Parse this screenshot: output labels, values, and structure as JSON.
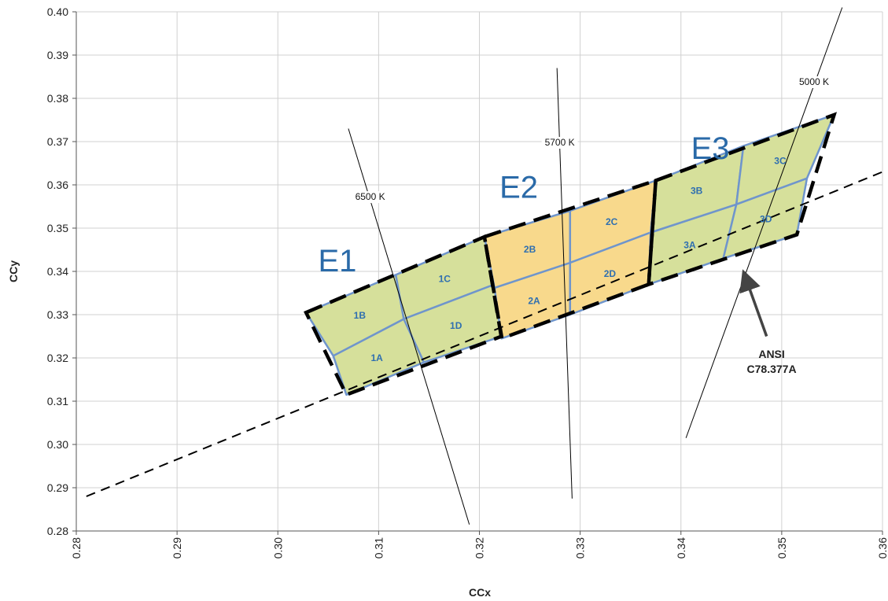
{
  "chart_data": {
    "type": "scatter",
    "xlabel": "CCx",
    "ylabel": "CCy",
    "xlim": [
      0.28,
      0.36
    ],
    "ylim": [
      0.28,
      0.4
    ],
    "x_ticks": [
      "0.28",
      "0.29",
      "0.30",
      "0.31",
      "0.32",
      "0.33",
      "0.34",
      "0.35",
      "0.36"
    ],
    "y_ticks": [
      "0.28",
      "0.29",
      "0.30",
      "0.31",
      "0.32",
      "0.33",
      "0.34",
      "0.35",
      "0.36",
      "0.37",
      "0.38",
      "0.39",
      "0.40"
    ],
    "grid": true,
    "colors": {
      "green_fill": "#d6e09b",
      "orange_fill": "#f8d98c",
      "bin_border": "#6f95cc",
      "label_blue": "#2a6aa8"
    },
    "planckian_locus": {
      "style": "dashed",
      "points": [
        [
          0.281,
          0.288
        ],
        [
          0.36,
          0.363
        ]
      ]
    },
    "cct_lines": [
      {
        "label": "6500 K",
        "points": [
          [
            0.307,
            0.373
          ],
          [
            0.319,
            0.2815
          ]
        ]
      },
      {
        "label": "5700 K",
        "points": [
          [
            0.3277,
            0.387
          ],
          [
            0.3292,
            0.2875
          ]
        ]
      },
      {
        "label": "5000 K",
        "points": [
          [
            0.356,
            0.401
          ],
          [
            0.3405,
            0.3015
          ]
        ]
      }
    ],
    "bins": [
      {
        "label": "1A",
        "group": "E1",
        "fill": "green",
        "points": [
          [
            0.3055,
            0.3205
          ],
          [
            0.3125,
            0.329
          ],
          [
            0.3145,
            0.319
          ],
          [
            0.3068,
            0.3115
          ]
        ]
      },
      {
        "label": "1B",
        "group": "E1",
        "fill": "green",
        "points": [
          [
            0.3028,
            0.3305
          ],
          [
            0.3117,
            0.3392
          ],
          [
            0.3125,
            0.329
          ],
          [
            0.3055,
            0.3205
          ]
        ]
      },
      {
        "label": "1C",
        "group": "E1",
        "fill": "green",
        "points": [
          [
            0.3117,
            0.3392
          ],
          [
            0.3205,
            0.348
          ],
          [
            0.3215,
            0.337
          ],
          [
            0.3125,
            0.329
          ]
        ]
      },
      {
        "label": "1D",
        "group": "E1",
        "fill": "green",
        "points": [
          [
            0.3125,
            0.329
          ],
          [
            0.3215,
            0.337
          ],
          [
            0.3222,
            0.325
          ],
          [
            0.3145,
            0.319
          ]
        ]
      },
      {
        "label": "2A",
        "group": "E2",
        "fill": "orange",
        "points": [
          [
            0.3215,
            0.3362
          ],
          [
            0.329,
            0.342
          ],
          [
            0.329,
            0.33
          ],
          [
            0.3222,
            0.3245
          ]
        ]
      },
      {
        "label": "2B",
        "group": "E2",
        "fill": "orange",
        "points": [
          [
            0.3205,
            0.348
          ],
          [
            0.329,
            0.354
          ],
          [
            0.329,
            0.342
          ],
          [
            0.3215,
            0.3362
          ]
        ]
      },
      {
        "label": "2C",
        "group": "E2",
        "fill": "orange",
        "points": [
          [
            0.329,
            0.354
          ],
          [
            0.3375,
            0.361
          ],
          [
            0.337,
            0.349
          ],
          [
            0.329,
            0.342
          ]
        ]
      },
      {
        "label": "2D",
        "group": "E2",
        "fill": "orange",
        "points": [
          [
            0.329,
            0.342
          ],
          [
            0.337,
            0.349
          ],
          [
            0.3368,
            0.337
          ],
          [
            0.329,
            0.33
          ]
        ]
      },
      {
        "label": "3A",
        "group": "E3",
        "fill": "green",
        "points": [
          [
            0.337,
            0.349
          ],
          [
            0.3455,
            0.3555
          ],
          [
            0.3442,
            0.343
          ],
          [
            0.3368,
            0.337
          ]
        ]
      },
      {
        "label": "3B",
        "group": "E3",
        "fill": "green",
        "points": [
          [
            0.3375,
            0.361
          ],
          [
            0.3462,
            0.369
          ],
          [
            0.3455,
            0.3555
          ],
          [
            0.337,
            0.349
          ]
        ]
      },
      {
        "label": "3C",
        "group": "E3",
        "fill": "green",
        "points": [
          [
            0.3462,
            0.369
          ],
          [
            0.3552,
            0.3762
          ],
          [
            0.3525,
            0.3615
          ],
          [
            0.3455,
            0.3555
          ]
        ]
      },
      {
        "label": "3D",
        "group": "E3",
        "fill": "green",
        "points": [
          [
            0.3455,
            0.3555
          ],
          [
            0.3525,
            0.3615
          ],
          [
            0.3515,
            0.3485
          ],
          [
            0.3442,
            0.343
          ]
        ]
      }
    ],
    "groups": [
      {
        "label": "E1",
        "position": [
          0.304,
          0.34
        ]
      },
      {
        "label": "E2",
        "position": [
          0.322,
          0.357
        ]
      },
      {
        "label": "E3",
        "position": [
          0.341,
          0.366
        ]
      }
    ],
    "group_outlines": [
      {
        "label": "E1",
        "points": [
          [
            0.3028,
            0.3305
          ],
          [
            0.3205,
            0.348
          ],
          [
            0.3222,
            0.325
          ],
          [
            0.3068,
            0.3115
          ]
        ]
      },
      {
        "label": "E2",
        "points": [
          [
            0.3205,
            0.348
          ],
          [
            0.3375,
            0.361
          ],
          [
            0.3368,
            0.337
          ],
          [
            0.3222,
            0.3245
          ]
        ]
      },
      {
        "label": "E3",
        "points": [
          [
            0.3375,
            0.361
          ],
          [
            0.3552,
            0.3762
          ],
          [
            0.3515,
            0.3485
          ],
          [
            0.3368,
            0.337
          ]
        ]
      }
    ],
    "annotation": {
      "text_line1": "ANSI",
      "text_line2": "C78.377A",
      "position": [
        0.349,
        0.32
      ],
      "arrow_from": [
        0.3485,
        0.325
      ],
      "arrow_to": [
        0.3463,
        0.3393
      ]
    }
  }
}
